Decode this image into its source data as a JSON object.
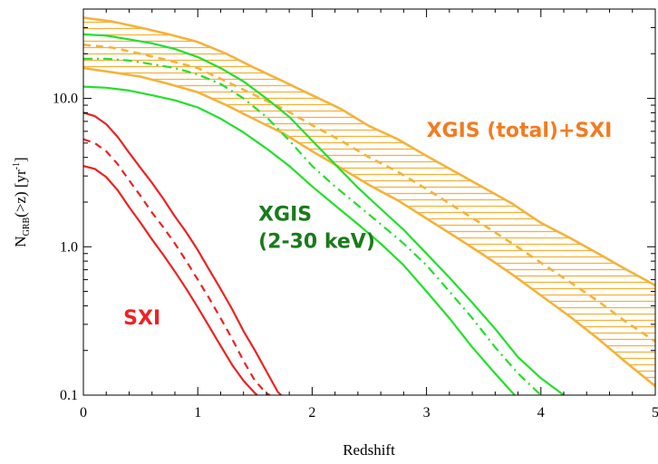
{
  "chart_data": {
    "type": "line",
    "xlabel": "Redshift",
    "ylabel": "N",
    "ylabel_sub": "GRB",
    "ylabel_rest": "(>z)   [yr",
    "ylabel_sup": "-1",
    "ylabel_end": "]",
    "xlim": [
      0,
      5
    ],
    "ylim": [
      0.1,
      40
    ],
    "yscale": "log",
    "grid": false,
    "x_ticks": [
      0,
      1,
      2,
      3,
      4,
      5
    ],
    "x_tick_labels": [
      "0",
      "1",
      "2",
      "3",
      "4",
      "5"
    ],
    "y_ticks": [
      0.1,
      1.0,
      10.0
    ],
    "y_tick_labels": [
      "0.1",
      "1.0",
      "10.0"
    ],
    "colors": {
      "total": "#f5b23a",
      "total_label": "#f47b20",
      "xgis": "#22e02a",
      "xgis_label": "#1a7a1a",
      "sxi": "#ee2222"
    },
    "annotations": [
      {
        "id": "total",
        "lines": [
          "XGIS (total)+SXI"
        ],
        "x": 3.0,
        "y": 5.5
      },
      {
        "id": "xgis",
        "lines": [
          "XGIS",
          "(2-30 keV)"
        ],
        "x": 1.53,
        "y": 1.5
      },
      {
        "id": "sxi",
        "lines": [
          "SXI"
        ],
        "x": 0.35,
        "y": 0.3
      }
    ],
    "series": [
      {
        "group": "total",
        "role": "upper",
        "style": "solid",
        "x": [
          0,
          0.25,
          0.5,
          0.75,
          1.0,
          1.25,
          1.5,
          1.75,
          2.0,
          2.25,
          2.5,
          2.75,
          3.0,
          3.25,
          3.5,
          3.75,
          4.0,
          4.25,
          4.5,
          4.75,
          5.0
        ],
        "y": [
          35,
          33,
          30,
          27,
          24,
          20,
          16,
          13,
          10.5,
          8.5,
          6.5,
          5.3,
          4.1,
          3.2,
          2.5,
          1.95,
          1.45,
          1.15,
          0.9,
          0.7,
          0.55
        ]
      },
      {
        "group": "total",
        "role": "mid",
        "style": "dashed",
        "x": [
          0,
          0.25,
          0.5,
          0.75,
          1.0,
          1.25,
          1.5,
          1.75,
          2.0,
          2.25,
          2.5,
          2.75,
          3.0,
          3.25,
          3.5,
          3.75,
          4.0,
          4.25,
          4.5,
          4.75,
          5.0
        ],
        "y": [
          23,
          22,
          20,
          18,
          16,
          13,
          10.5,
          8.5,
          6.6,
          5.2,
          4.0,
          3.2,
          2.45,
          1.85,
          1.4,
          1.05,
          0.78,
          0.58,
          0.43,
          0.31,
          0.23
        ]
      },
      {
        "group": "total",
        "role": "lower",
        "style": "solid",
        "x": [
          0,
          0.25,
          0.5,
          0.75,
          1.0,
          1.25,
          1.5,
          1.75,
          2.0,
          2.25,
          2.5,
          2.75,
          3.0,
          3.25,
          3.5,
          3.75,
          4.0,
          4.25,
          4.5,
          4.75,
          5.0
        ],
        "y": [
          16,
          15,
          14,
          12.5,
          11,
          9,
          7.2,
          5.8,
          4.4,
          3.4,
          2.6,
          2.05,
          1.55,
          1.17,
          0.88,
          0.65,
          0.47,
          0.34,
          0.24,
          0.165,
          0.115
        ]
      },
      {
        "group": "xgis",
        "role": "upper",
        "style": "solid",
        "x": [
          0,
          0.2,
          0.4,
          0.6,
          0.8,
          1.0,
          1.2,
          1.4,
          1.6,
          1.8,
          2.0,
          2.2,
          2.4,
          2.6,
          2.8,
          3.0,
          3.2,
          3.4,
          3.6,
          3.8,
          4.0,
          4.2
        ],
        "y": [
          27,
          26.5,
          25,
          23.5,
          21.5,
          19,
          16,
          13,
          10,
          7.5,
          5.2,
          3.6,
          2.5,
          1.8,
          1.3,
          0.9,
          0.62,
          0.42,
          0.28,
          0.18,
          0.13,
          0.1
        ]
      },
      {
        "group": "xgis",
        "role": "mid",
        "style": "dashdot",
        "x": [
          0,
          0.2,
          0.4,
          0.6,
          0.8,
          1.0,
          1.2,
          1.4,
          1.6,
          1.8,
          2.0,
          2.2,
          2.4,
          2.6,
          2.8,
          3.0,
          3.2,
          3.4,
          3.6,
          3.8,
          4.0
        ],
        "y": [
          18.5,
          18.5,
          18,
          17,
          16,
          14.5,
          12.5,
          10,
          7.5,
          5.2,
          3.5,
          2.55,
          1.9,
          1.42,
          1.05,
          0.75,
          0.5,
          0.33,
          0.21,
          0.14,
          0.1
        ]
      },
      {
        "group": "xgis",
        "role": "lower",
        "style": "solid",
        "x": [
          0,
          0.2,
          0.4,
          0.6,
          0.8,
          1.0,
          1.2,
          1.4,
          1.6,
          1.8,
          2.0,
          2.2,
          2.4,
          2.6,
          2.8,
          3.0,
          3.2,
          3.4,
          3.6,
          3.77
        ],
        "y": [
          12,
          11.8,
          11.3,
          10.5,
          9.7,
          8.7,
          7.3,
          5.9,
          4.6,
          3.5,
          2.55,
          1.9,
          1.42,
          1.05,
          0.75,
          0.5,
          0.33,
          0.21,
          0.14,
          0.1
        ]
      },
      {
        "group": "sxi",
        "role": "upper",
        "style": "solid",
        "x": [
          0,
          0.1,
          0.2,
          0.3,
          0.4,
          0.5,
          0.6,
          0.7,
          0.8,
          0.9,
          1.0,
          1.1,
          1.2,
          1.3,
          1.4,
          1.5,
          1.6,
          1.7,
          1.73
        ],
        "y": [
          8,
          7.6,
          6.7,
          5.5,
          4.3,
          3.4,
          2.7,
          2.1,
          1.6,
          1.25,
          0.95,
          0.7,
          0.52,
          0.38,
          0.27,
          0.2,
          0.145,
          0.105,
          0.1
        ]
      },
      {
        "group": "sxi",
        "role": "mid",
        "style": "dashed",
        "x": [
          0,
          0.1,
          0.2,
          0.3,
          0.4,
          0.5,
          0.6,
          0.7,
          0.8,
          0.9,
          1.0,
          1.1,
          1.2,
          1.3,
          1.4,
          1.5,
          1.6,
          1.63
        ],
        "y": [
          5.3,
          5.0,
          4.4,
          3.6,
          2.8,
          2.2,
          1.7,
          1.35,
          1.05,
          0.8,
          0.6,
          0.45,
          0.33,
          0.24,
          0.17,
          0.125,
          0.103,
          0.1
        ]
      },
      {
        "group": "sxi",
        "role": "lower",
        "style": "solid",
        "x": [
          0,
          0.1,
          0.2,
          0.3,
          0.4,
          0.5,
          0.6,
          0.7,
          0.8,
          0.9,
          1.0,
          1.1,
          1.2,
          1.3,
          1.4,
          1.5,
          1.52
        ],
        "y": [
          3.5,
          3.35,
          2.95,
          2.4,
          1.85,
          1.45,
          1.12,
          0.88,
          0.68,
          0.52,
          0.39,
          0.29,
          0.215,
          0.16,
          0.125,
          0.103,
          0.1
        ]
      }
    ]
  }
}
